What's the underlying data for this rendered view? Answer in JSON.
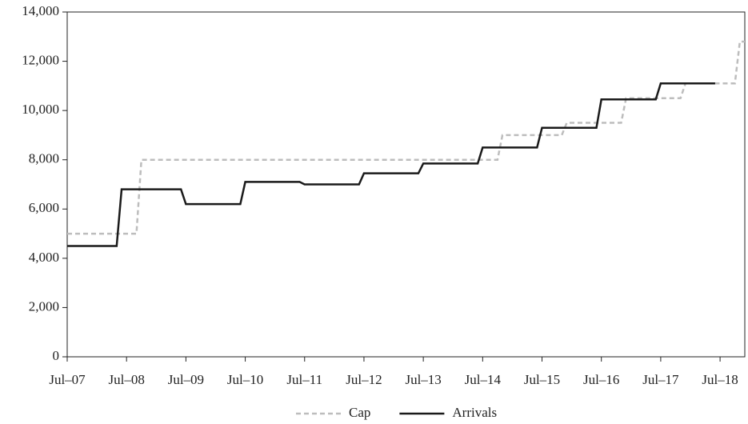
{
  "chart_data": {
    "type": "line",
    "categories": [
      "Jul–07",
      null,
      null,
      null,
      null,
      null,
      null,
      null,
      null,
      null,
      null,
      null,
      "Jul–08",
      null,
      null,
      null,
      null,
      null,
      null,
      null,
      null,
      null,
      null,
      null,
      "Jul–09",
      null,
      null,
      null,
      null,
      null,
      null,
      null,
      null,
      null,
      null,
      null,
      "Jul–10",
      null,
      null,
      null,
      null,
      null,
      null,
      null,
      null,
      null,
      null,
      null,
      "Jul–11",
      null,
      null,
      null,
      null,
      null,
      null,
      null,
      null,
      null,
      null,
      null,
      "Jul–12",
      null,
      null,
      null,
      null,
      null,
      null,
      null,
      null,
      null,
      null,
      null,
      "Jul–13",
      null,
      null,
      null,
      null,
      null,
      null,
      null,
      null,
      null,
      null,
      null,
      "Jul–14",
      null,
      null,
      null,
      null,
      null,
      null,
      null,
      null,
      null,
      null,
      null,
      "Jul–15",
      null,
      null,
      null,
      null,
      null,
      null,
      null,
      null,
      null,
      null,
      null,
      "Jul–16",
      null,
      null,
      null,
      null,
      null,
      null,
      null,
      null,
      null,
      null,
      null,
      "Jul–17",
      null,
      null,
      null,
      null,
      null,
      null,
      null,
      null,
      null,
      null,
      null,
      "Jul–18",
      null,
      null,
      null,
      null,
      null
    ],
    "series": [
      {
        "name": "Cap",
        "color": "#bdbdbd",
        "dashed": true,
        "values": [
          5000,
          5000,
          5000,
          5000,
          5000,
          5000,
          5000,
          5000,
          5000,
          5000,
          5000,
          5000,
          5000,
          5000,
          5000,
          8000,
          8000,
          8000,
          8000,
          8000,
          8000,
          8000,
          8000,
          8000,
          8000,
          8000,
          8000,
          8000,
          8000,
          8000,
          8000,
          8000,
          8000,
          8000,
          8000,
          8000,
          8000,
          8000,
          8000,
          8000,
          8000,
          8000,
          8000,
          8000,
          8000,
          8000,
          8000,
          8000,
          8000,
          8000,
          8000,
          8000,
          8000,
          8000,
          8000,
          8000,
          8000,
          8000,
          8000,
          8000,
          8000,
          8000,
          8000,
          8000,
          8000,
          8000,
          8000,
          8000,
          8000,
          8000,
          8000,
          8000,
          8000,
          8000,
          8000,
          8000,
          8000,
          8000,
          8000,
          8000,
          8000,
          8000,
          8000,
          8000,
          8000,
          8000,
          8000,
          8000,
          9000,
          9000,
          9000,
          9000,
          9000,
          9000,
          9000,
          9000,
          9000,
          9000,
          9000,
          9000,
          9000,
          9500,
          9500,
          9500,
          9500,
          9500,
          9500,
          9500,
          9500,
          9500,
          9500,
          9500,
          9500,
          10500,
          10500,
          10500,
          10500,
          10500,
          10500,
          10500,
          10500,
          10500,
          10500,
          10500,
          10500,
          11100,
          11100,
          11100,
          11100,
          11100,
          11100,
          11100,
          11100,
          11100,
          11100,
          11100,
          12800,
          12800
        ]
      },
      {
        "name": "Arrivals",
        "color": "#1a1a1a",
        "dashed": false,
        "values": [
          4500,
          4500,
          4500,
          4500,
          4500,
          4500,
          4500,
          4500,
          4500,
          4500,
          4500,
          6800,
          6800,
          6800,
          6800,
          6800,
          6800,
          6800,
          6800,
          6800,
          6800,
          6800,
          6800,
          6800,
          6200,
          6200,
          6200,
          6200,
          6200,
          6200,
          6200,
          6200,
          6200,
          6200,
          6200,
          6200,
          7100,
          7100,
          7100,
          7100,
          7100,
          7100,
          7100,
          7100,
          7100,
          7100,
          7100,
          7100,
          7000,
          7000,
          7000,
          7000,
          7000,
          7000,
          7000,
          7000,
          7000,
          7000,
          7000,
          7000,
          7450,
          7450,
          7450,
          7450,
          7450,
          7450,
          7450,
          7450,
          7450,
          7450,
          7450,
          7450,
          7850,
          7850,
          7850,
          7850,
          7850,
          7850,
          7850,
          7850,
          7850,
          7850,
          7850,
          7850,
          8500,
          8500,
          8500,
          8500,
          8500,
          8500,
          8500,
          8500,
          8500,
          8500,
          8500,
          8500,
          9300,
          9300,
          9300,
          9300,
          9300,
          9300,
          9300,
          9300,
          9300,
          9300,
          9300,
          9300,
          10450,
          10450,
          10450,
          10450,
          10450,
          10450,
          10450,
          10450,
          10450,
          10450,
          10450,
          10450,
          11100,
          11100,
          11100,
          11100,
          11100,
          11100,
          11100,
          11100,
          11100,
          11100,
          11100,
          11100,
          null,
          null,
          null,
          null,
          null,
          null
        ]
      }
    ],
    "ylim": [
      0,
      14000
    ],
    "yticks": [
      0,
      {
        "value": 2000,
        "label": "2,000"
      },
      {
        "value": 4000,
        "label": "4,000"
      },
      {
        "value": 6000,
        "label": "6,000"
      },
      {
        "value": 8000,
        "label": "8,000"
      },
      {
        "value": 10000,
        "label": "10,000"
      },
      {
        "value": 12000,
        "label": "12,000"
      },
      {
        "value": 14000,
        "label": "14,000"
      }
    ],
    "grid": false,
    "legend": "bottom"
  }
}
